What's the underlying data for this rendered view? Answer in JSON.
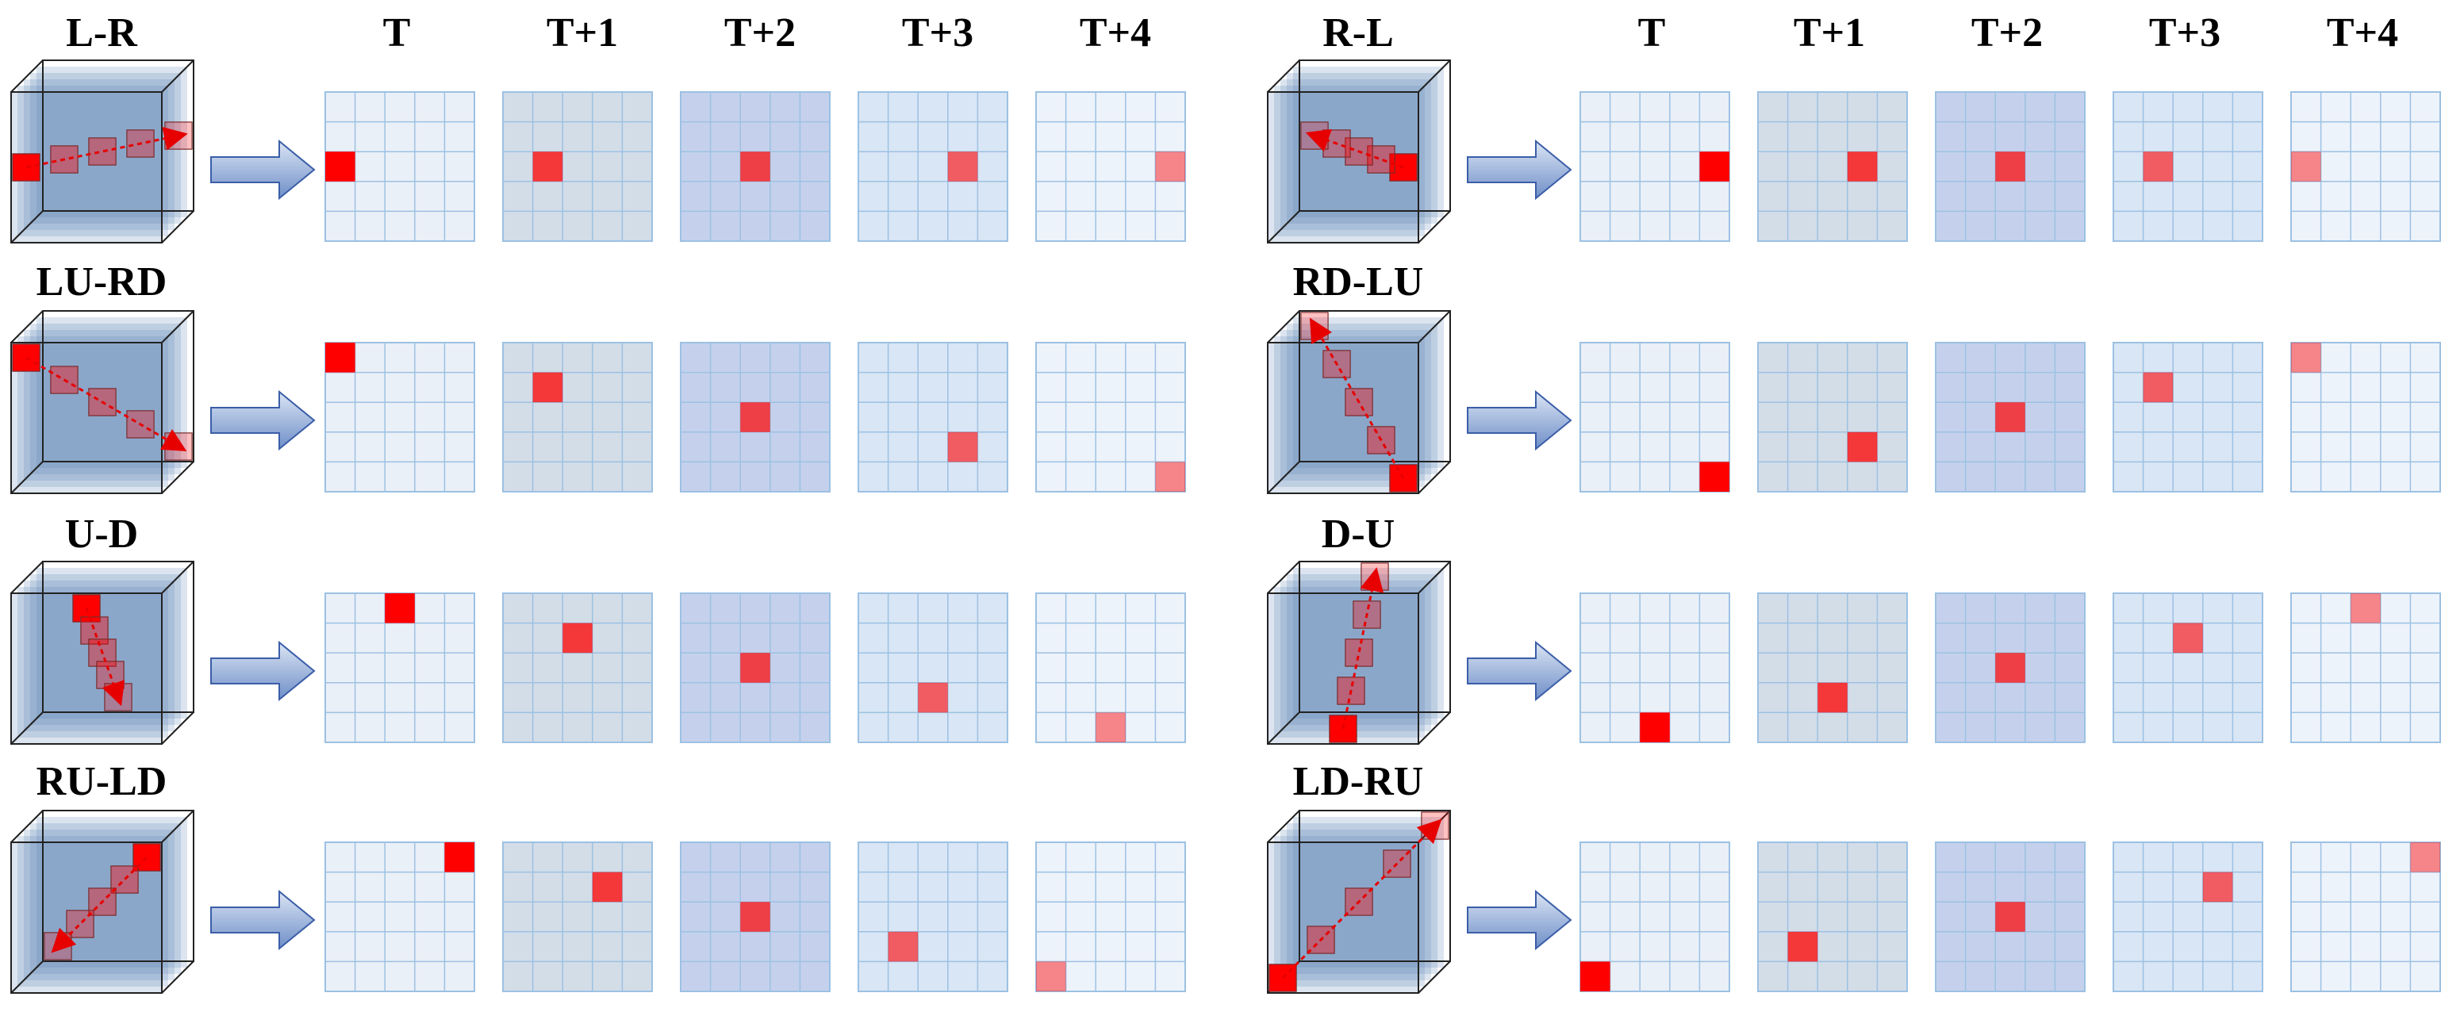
{
  "time_labels": [
    "T",
    "T+1",
    "T+2",
    "T+3",
    "T+4"
  ],
  "colors": {
    "highlight": "#ff0000",
    "frame_fills": [
      "#eaf0f7",
      "#d3dde8",
      "#c5d1ec",
      "#d9e6f5",
      "#edf3fa"
    ],
    "grid_line": "#9cc1e3",
    "arrow_fill": "#7f9ed2",
    "cube_fill": "#5a86b8"
  },
  "highlight_opacity": [
    1.0,
    0.75,
    0.7,
    0.6,
    0.45
  ],
  "grid_size": 5,
  "panels": [
    {
      "name": "L-R",
      "path": [
        [
          2,
          0
        ],
        [
          2,
          1
        ],
        [
          2,
          2
        ],
        [
          2,
          3
        ],
        [
          2,
          4
        ]
      ]
    },
    {
      "name": "R-L",
      "path": [
        [
          2,
          4
        ],
        [
          2,
          3
        ],
        [
          2,
          2
        ],
        [
          2,
          1
        ],
        [
          2,
          0
        ]
      ]
    },
    {
      "name": "LU-RD",
      "path": [
        [
          0,
          0
        ],
        [
          1,
          1
        ],
        [
          2,
          2
        ],
        [
          3,
          3
        ],
        [
          4,
          4
        ]
      ]
    },
    {
      "name": "RD-LU",
      "path": [
        [
          4,
          4
        ],
        [
          3,
          3
        ],
        [
          2,
          2
        ],
        [
          1,
          1
        ],
        [
          0,
          0
        ]
      ]
    },
    {
      "name": "U-D",
      "path": [
        [
          0,
          2
        ],
        [
          1,
          2
        ],
        [
          2,
          2
        ],
        [
          3,
          2
        ],
        [
          4,
          2
        ]
      ]
    },
    {
      "name": "D-U",
      "path": [
        [
          4,
          2
        ],
        [
          3,
          2
        ],
        [
          2,
          2
        ],
        [
          1,
          2
        ],
        [
          0,
          2
        ]
      ]
    },
    {
      "name": "RU-LD",
      "path": [
        [
          0,
          4
        ],
        [
          1,
          3
        ],
        [
          2,
          2
        ],
        [
          3,
          1
        ],
        [
          4,
          0
        ]
      ]
    },
    {
      "name": "LD-RU",
      "path": [
        [
          4,
          0
        ],
        [
          3,
          1
        ],
        [
          2,
          2
        ],
        [
          1,
          3
        ],
        [
          0,
          4
        ]
      ]
    }
  ]
}
